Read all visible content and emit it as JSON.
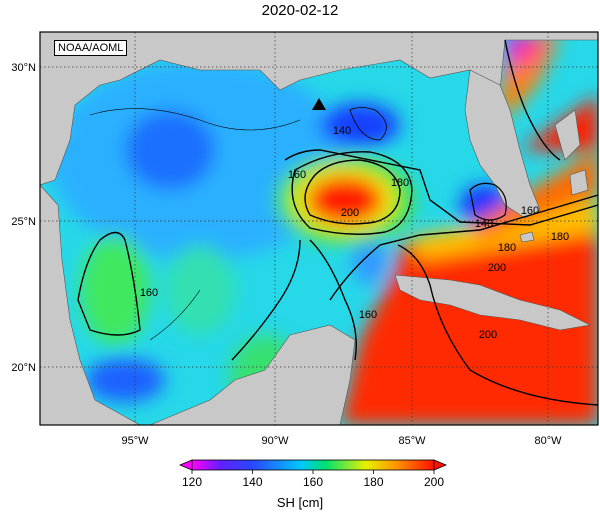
{
  "header": {
    "date": "2020-02-12"
  },
  "credit": "NOAA/AOML",
  "map": {
    "lat_labels": [
      "30°N",
      "25°N",
      "20°N"
    ],
    "lon_labels": [
      "95°W",
      "90°W",
      "85°W",
      "80°W"
    ],
    "extent": {
      "lon_min": -98.0,
      "lon_max": -78.0,
      "lat_min": 18.0,
      "lat_max": 31.0
    },
    "contour_labels": [
      "140",
      "160",
      "180",
      "200",
      "160",
      "180",
      "200",
      "160",
      "200",
      "140",
      "160",
      "180"
    ],
    "marker": {
      "symbol": "triangle",
      "lon": -88.5,
      "lat": 28.9
    }
  },
  "colorbar": {
    "min": 120,
    "max": 200,
    "ticks": [
      "120",
      "140",
      "160",
      "180",
      "200"
    ],
    "label": "SH [cm]",
    "colors": [
      "#ff00ff",
      "#3030ff",
      "#00c8ff",
      "#00e060",
      "#f0f000",
      "#ff8000",
      "#ff1000"
    ]
  },
  "colors": {
    "land": "#c8c8c8",
    "frame": "#000000",
    "grid": "#333333"
  }
}
